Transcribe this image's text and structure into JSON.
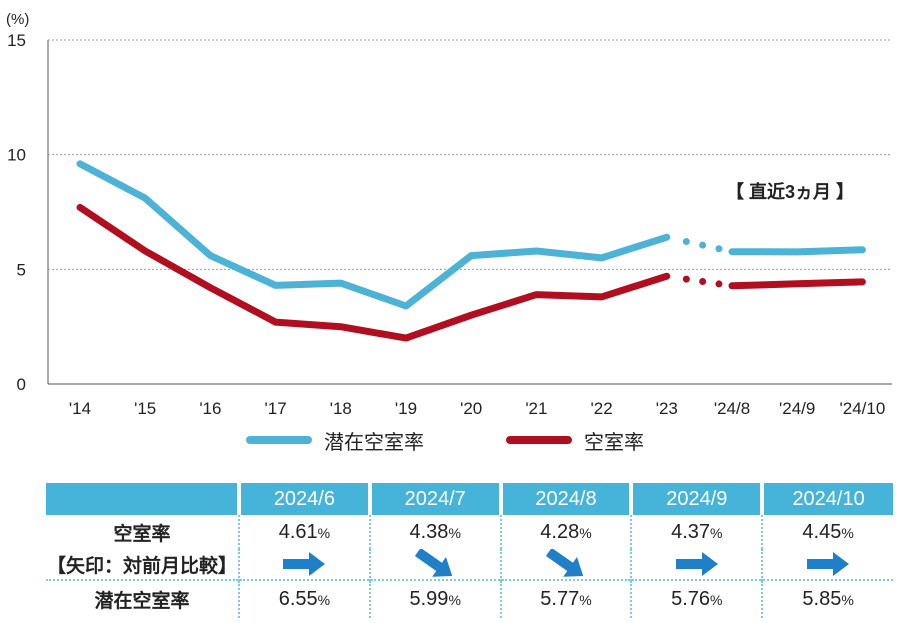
{
  "chart_data": {
    "type": "line",
    "unit_label": "(%)",
    "categories": [
      "'14",
      "'15",
      "'16",
      "'17",
      "'18",
      "'19",
      "'20",
      "'21",
      "'22",
      "'23",
      "'24/8",
      "'24/9",
      "'24/10"
    ],
    "ylim": [
      0,
      15
    ],
    "yticks": [
      0,
      5,
      10,
      15
    ],
    "grid": true,
    "series": [
      {
        "name": "潜在空室率",
        "color": "#4db3d6",
        "values": [
          9.6,
          8.1,
          5.6,
          4.3,
          4.4,
          3.4,
          5.6,
          5.8,
          5.5,
          6.4,
          5.77,
          5.76,
          5.85
        ]
      },
      {
        "name": "空室率",
        "color": "#b10f1f",
        "values": [
          7.7,
          5.8,
          4.2,
          2.7,
          2.5,
          2.0,
          3.0,
          3.9,
          3.8,
          4.7,
          4.28,
          4.37,
          4.45
        ]
      }
    ],
    "annotation": "【 直近3ヵ月 】"
  },
  "legend": {
    "latent": "潜在空室率",
    "vacancy": "空室率"
  },
  "table": {
    "months": [
      "2024/6",
      "2024/7",
      "2024/8",
      "2024/9",
      "2024/10"
    ],
    "row_vacancy_label": "空室率",
    "row_arrow_label": "【矢印：対前月比較】",
    "row_latent_label": "潜在空室率",
    "unit": "%",
    "vacancy": [
      "4.61",
      "4.38",
      "4.28",
      "4.37",
      "4.45"
    ],
    "latent": [
      "6.55",
      "5.99",
      "5.77",
      "5.76",
      "5.85"
    ],
    "arrows": [
      "flat",
      "down",
      "down",
      "flat",
      "flat"
    ],
    "arrow_color": "#1f7fc7"
  }
}
